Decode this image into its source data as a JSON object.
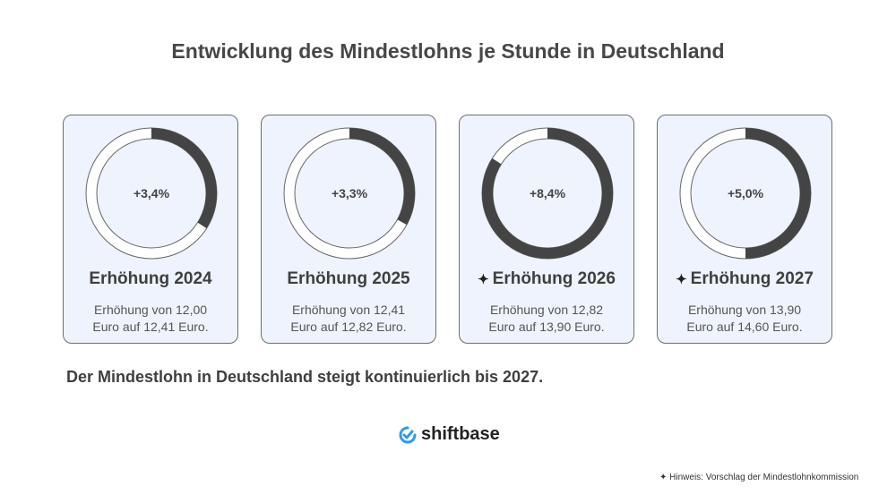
{
  "title": "Entwicklung des Mindestlohns je Stunde in Deutschland",
  "cards": [
    {
      "percent_label": "+3,4%",
      "percent": 3.4,
      "title": "Erhöhung 2024",
      "starred": false,
      "desc_line1": "Erhöhung von 12,00",
      "desc_line2": "Euro auf 12,41 Euro."
    },
    {
      "percent_label": "+3,3%",
      "percent": 3.3,
      "title": "Erhöhung 2025",
      "starred": false,
      "desc_line1": "Erhöhung von 12,41",
      "desc_line2": "Euro auf 12,82 Euro."
    },
    {
      "percent_label": "+8,4%",
      "percent": 8.4,
      "title": "Erhöhung 2026",
      "starred": true,
      "desc_line1": "Erhöhung von 12,82",
      "desc_line2": "Euro auf 13,90 Euro."
    },
    {
      "percent_label": "+5,0%",
      "percent": 5.0,
      "title": "Erhöhung 2027",
      "starred": true,
      "desc_line1": "Erhöhung von 13,90",
      "desc_line2": "Euro auf 14,60 Euro."
    }
  ],
  "summary": "Der Mindestlohn in Deutschland steigt kontinuierlich bis 2027.",
  "logo_text": "shiftbase",
  "note": "Hinweis: Vorschlag der Mindestlohnkommission",
  "colors": {
    "ring_fill": "#444444",
    "card_bg": "#eef3fd",
    "logo_accent": "#2e9be8"
  }
}
